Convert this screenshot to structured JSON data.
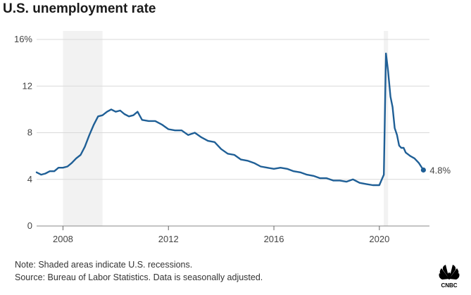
{
  "title": "U.S. unemployment rate",
  "notes": {
    "note": "Note: Shaded areas indicate U.S. recessions.",
    "source": "Source: Bureau of Labor Statistics. Data is seasonally adjusted."
  },
  "logo": {
    "text": "CNBC",
    "icon": "nbc-peacock-icon"
  },
  "chart_data": {
    "type": "line",
    "title": "U.S. unemployment rate",
    "xlabel": "",
    "ylabel": "",
    "xlim": [
      2007.0,
      2021.9
    ],
    "ylim": [
      0,
      16
    ],
    "x_ticks": [
      2008,
      2012,
      2016,
      2020
    ],
    "x_tick_labels": [
      "2008",
      "2012",
      "2016",
      "2020"
    ],
    "y_ticks": [
      0,
      4,
      8,
      12,
      16
    ],
    "y_tick_labels": [
      "0",
      "4",
      "8",
      "12",
      "16%"
    ],
    "grid": true,
    "line_color": "#1f5f96",
    "recession_color": "#f2f2f2",
    "recessions": [
      [
        2008.0,
        2009.5
      ],
      [
        2020.17,
        2020.33
      ]
    ],
    "end_label": "4.8%",
    "series": [
      {
        "x": [
          2007.0,
          2007.17,
          2007.33,
          2007.5,
          2007.67,
          2007.83,
          2008.0,
          2008.17,
          2008.33,
          2008.5,
          2008.67,
          2008.83,
          2009.0,
          2009.17,
          2009.33,
          2009.5,
          2009.67,
          2009.83,
          2010.0,
          2010.17,
          2010.33,
          2010.5,
          2010.67,
          2010.83,
          2011.0,
          2011.25,
          2011.5,
          2011.75,
          2012.0,
          2012.25,
          2012.5,
          2012.75,
          2013.0,
          2013.25,
          2013.5,
          2013.75,
          2014.0,
          2014.25,
          2014.5,
          2014.75,
          2015.0,
          2015.25,
          2015.5,
          2015.75,
          2016.0,
          2016.25,
          2016.5,
          2016.75,
          2017.0,
          2017.25,
          2017.5,
          2017.75,
          2018.0,
          2018.25,
          2018.5,
          2018.75,
          2019.0,
          2019.25,
          2019.5,
          2019.75,
          2020.0,
          2020.17,
          2020.25,
          2020.33,
          2020.42,
          2020.5,
          2020.58,
          2020.67,
          2020.75,
          2020.83,
          2020.92,
          2021.0,
          2021.17,
          2021.33,
          2021.5,
          2021.67
        ],
        "y": [
          4.6,
          4.4,
          4.5,
          4.7,
          4.7,
          5.0,
          5.0,
          5.1,
          5.4,
          5.8,
          6.1,
          6.8,
          7.8,
          8.7,
          9.4,
          9.5,
          9.8,
          10.0,
          9.8,
          9.9,
          9.6,
          9.4,
          9.5,
          9.8,
          9.1,
          9.0,
          9.0,
          8.7,
          8.3,
          8.2,
          8.2,
          7.8,
          8.0,
          7.6,
          7.3,
          7.2,
          6.6,
          6.2,
          6.1,
          5.7,
          5.6,
          5.4,
          5.1,
          5.0,
          4.9,
          5.0,
          4.9,
          4.7,
          4.6,
          4.4,
          4.3,
          4.1,
          4.1,
          3.9,
          3.9,
          3.8,
          4.0,
          3.7,
          3.6,
          3.5,
          3.5,
          4.4,
          14.8,
          13.3,
          11.1,
          10.2,
          8.4,
          7.8,
          6.9,
          6.7,
          6.7,
          6.3,
          6.0,
          5.8,
          5.4,
          4.8
        ]
      }
    ]
  }
}
